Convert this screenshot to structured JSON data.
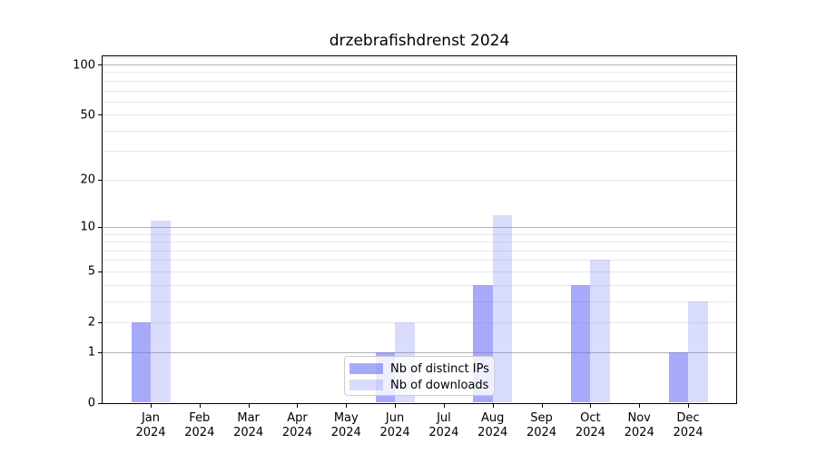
{
  "figure_title": "drzebrafishdrenst 2024",
  "chart_data": {
    "type": "bar",
    "title": "drzebrafishdrenst 2024",
    "categories": [
      "Jan",
      "Feb",
      "Mar",
      "Apr",
      "May",
      "Jun",
      "Jul",
      "Aug",
      "Sep",
      "Oct",
      "Nov",
      "Dec"
    ],
    "x_tick_year": "2024",
    "series": [
      {
        "name": "Nb of distinct IPs",
        "color": "rgba(106,114,244,0.60)",
        "values": [
          2,
          0,
          0,
          0,
          0,
          1,
          0,
          4,
          0,
          4,
          0,
          1
        ]
      },
      {
        "name": "Nb of downloads",
        "color": "rgba(106,114,244,0.25)",
        "values": [
          11,
          0,
          0,
          0,
          0,
          2,
          0,
          12,
          0,
          6,
          0,
          3
        ]
      }
    ],
    "yscale": "symlog",
    "ylim": [
      0,
      112
    ],
    "y_ticks": [
      0,
      1,
      2,
      5,
      10,
      20,
      50,
      100
    ],
    "y_major_gridlines": [
      1,
      10,
      100
    ],
    "y_minor_gridlines": [
      2,
      3,
      4,
      5,
      6,
      7,
      8,
      9,
      20,
      30,
      40,
      50,
      60,
      70,
      80,
      90,
      110
    ],
    "grid": true,
    "legend_position": "lower center",
    "colors": {
      "spine": "#000000",
      "tick_text": "#000000",
      "major_grid": "#b2b2b2",
      "minor_grid": "#e8e8e8",
      "legend_border": "#cccccc"
    }
  }
}
